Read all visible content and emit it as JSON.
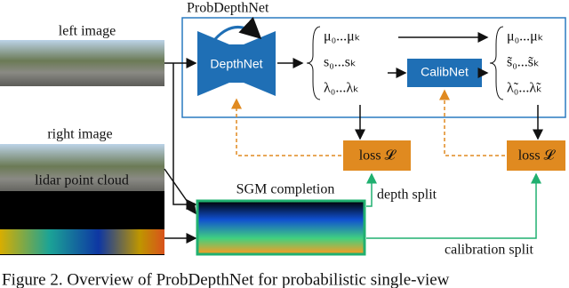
{
  "figure": {
    "left_image_label": "left image",
    "right_image_label": "right image",
    "lidar_label": "lidar point cloud",
    "network_title": "ProbDepthNet",
    "depthnet": "DepthNet",
    "calibnet": "CalibNet",
    "outputs": [
      "μ₀...μₖ",
      "s₀...sₖ",
      "λ₀...λₖ"
    ],
    "calibrated_outputs": [
      "μ₀...μₖ",
      "s̃₀...s̃ₖ",
      "λ̃₀...λ̃ₖ"
    ],
    "loss_left": "loss 𝓛",
    "loss_right": "loss 𝓛",
    "sgm_label": "SGM completion",
    "depth_split": "depth split",
    "calibration_split": "calibration split",
    "caption": "Figure 2. Overview of ProbDepthNet for probabilistic single-view"
  }
}
